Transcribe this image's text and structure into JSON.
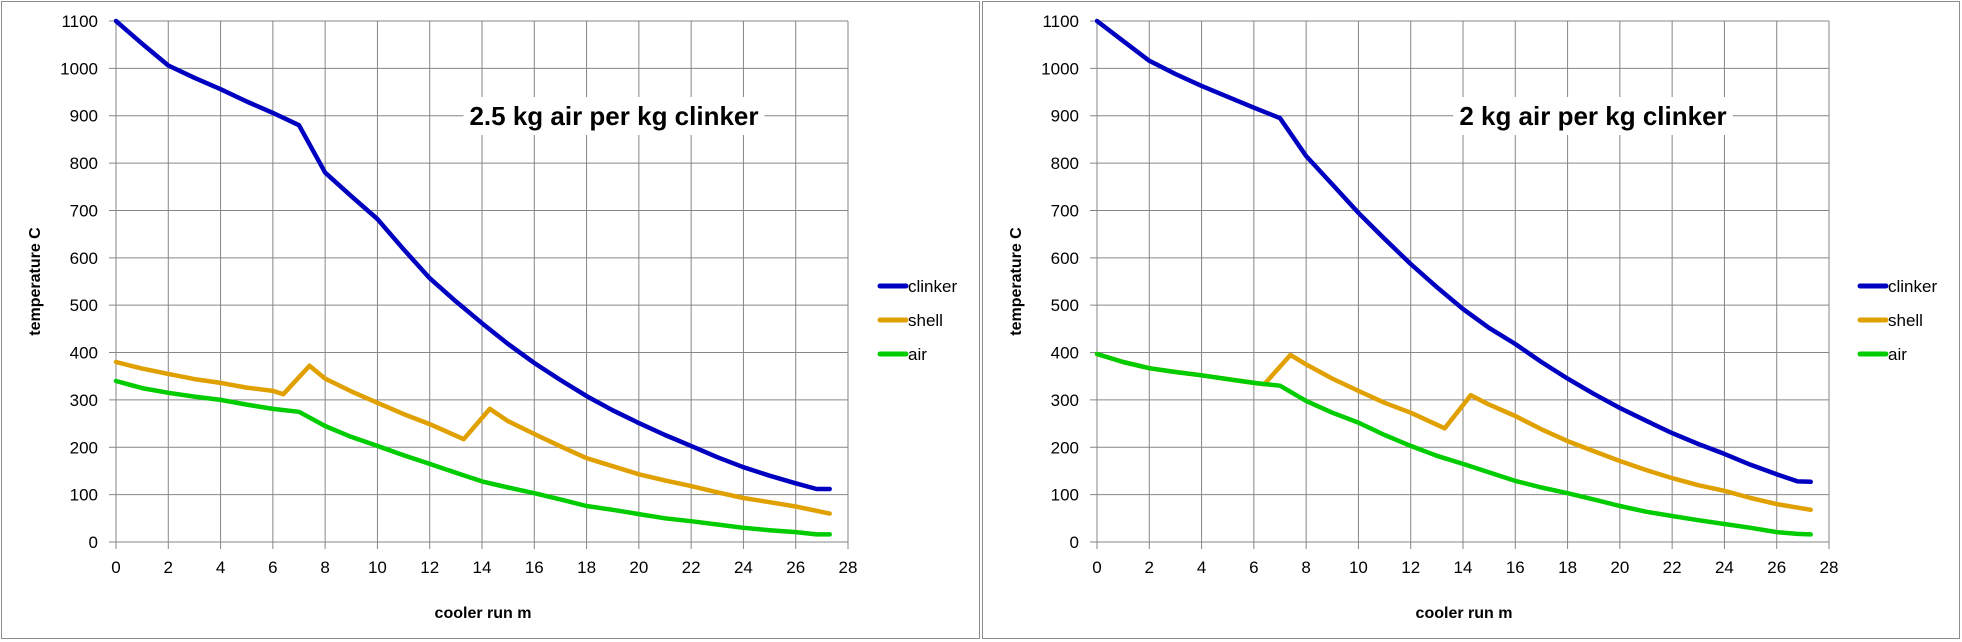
{
  "chart_data": [
    {
      "type": "line",
      "title": "2.5 kg air per kg clinker",
      "xlabel": "cooler run m",
      "ylabel": "temperature C",
      "xlim": [
        0,
        28
      ],
      "ylim": [
        0,
        1100
      ],
      "xticks": [
        0,
        2,
        4,
        6,
        8,
        10,
        12,
        14,
        16,
        18,
        20,
        22,
        24,
        26,
        28
      ],
      "yticks": [
        0,
        100,
        200,
        300,
        400,
        500,
        600,
        700,
        800,
        900,
        1000,
        1100
      ],
      "grid": true,
      "legend_position": "right",
      "series": [
        {
          "name": "clinker",
          "color": "#0000C0",
          "x": [
            0,
            1,
            2,
            3,
            4,
            5,
            6,
            7,
            8,
            9,
            10,
            11,
            12,
            13,
            14,
            15,
            16,
            17,
            18,
            19,
            20,
            21,
            22,
            23,
            24,
            25,
            26,
            26.8,
            27.3
          ],
          "y": [
            1100,
            1052,
            1006,
            980,
            956,
            930,
            906,
            880,
            780,
            730,
            682,
            618,
            557,
            508,
            462,
            418,
            378,
            342,
            308,
            278,
            251,
            226,
            203,
            179,
            158,
            140,
            124,
            112,
            112
          ]
        },
        {
          "name": "shell",
          "color": "#E0A000",
          "x": [
            0,
            1,
            2,
            3,
            4,
            5,
            6,
            6.4,
            7.4,
            8,
            9,
            10,
            11,
            12,
            13.3,
            14.3,
            15,
            16,
            17,
            18,
            19,
            20,
            21,
            22,
            23,
            24,
            25,
            26,
            27.3
          ],
          "y": [
            380,
            366,
            355,
            344,
            336,
            326,
            319,
            312,
            372,
            345,
            318,
            294,
            270,
            249,
            217,
            281,
            255,
            228,
            202,
            177,
            160,
            143,
            130,
            118,
            105,
            93,
            84,
            75,
            60
          ]
        },
        {
          "name": "air",
          "color": "#00CC00",
          "x": [
            0,
            1,
            2,
            3,
            4,
            5,
            6,
            7,
            8,
            9,
            10,
            11,
            12,
            13,
            14,
            15,
            16,
            17,
            18,
            19,
            20,
            21,
            22,
            23,
            24,
            25,
            26,
            26.8,
            27.3
          ],
          "y": [
            340,
            325,
            315,
            307,
            300,
            290,
            281,
            275,
            245,
            222,
            203,
            183,
            165,
            146,
            128,
            115,
            103,
            90,
            76,
            68,
            59,
            50,
            44,
            37,
            30,
            25,
            21,
            16,
            16
          ]
        }
      ]
    },
    {
      "type": "line",
      "title": "2 kg air per kg clinker",
      "xlabel": "cooler run m",
      "ylabel": "temperature C",
      "xlim": [
        0,
        28
      ],
      "ylim": [
        0,
        1100
      ],
      "xticks": [
        0,
        2,
        4,
        6,
        8,
        10,
        12,
        14,
        16,
        18,
        20,
        22,
        24,
        26,
        28
      ],
      "yticks": [
        0,
        100,
        200,
        300,
        400,
        500,
        600,
        700,
        800,
        900,
        1000,
        1100
      ],
      "grid": true,
      "legend_position": "right",
      "series": [
        {
          "name": "clinker",
          "color": "#0000C0",
          "x": [
            0,
            1,
            2,
            3,
            4,
            5,
            6,
            7,
            8,
            9,
            10,
            11,
            12,
            13,
            14,
            15,
            16,
            17,
            18,
            19,
            20,
            21,
            22,
            23,
            24,
            25,
            26,
            26.8,
            27.3
          ],
          "y": [
            1100,
            1058,
            1016,
            988,
            963,
            940,
            917,
            895,
            815,
            755,
            695,
            640,
            587,
            538,
            492,
            452,
            418,
            380,
            345,
            313,
            283,
            256,
            230,
            207,
            186,
            163,
            143,
            128,
            127
          ]
        },
        {
          "name": "shell",
          "color": "#E0A000",
          "x": [
            0,
            1,
            2,
            3,
            4,
            5,
            6,
            6.4,
            7.4,
            8,
            9,
            10,
            11,
            12,
            13.3,
            14.3,
            15,
            16,
            17,
            18,
            19,
            20,
            21,
            22,
            23,
            24,
            25,
            26,
            27.3
          ],
          "y": [
            397,
            380,
            367,
            359,
            352,
            344,
            336,
            333,
            395,
            375,
            345,
            319,
            294,
            273,
            240,
            310,
            290,
            266,
            238,
            213,
            192,
            171,
            152,
            135,
            120,
            108,
            93,
            80,
            68
          ]
        },
        {
          "name": "air",
          "color": "#00CC00",
          "x": [
            0,
            1,
            2,
            3,
            4,
            5,
            6,
            7,
            8,
            9,
            10,
            11,
            12,
            13,
            14,
            15,
            16,
            17,
            18,
            19,
            20,
            21,
            22,
            23,
            24,
            25,
            26,
            26.8,
            27.3
          ],
          "y": [
            397,
            380,
            367,
            359,
            352,
            344,
            336,
            330,
            298,
            273,
            252,
            226,
            203,
            182,
            165,
            147,
            129,
            115,
            103,
            90,
            76,
            64,
            55,
            46,
            38,
            30,
            21,
            17,
            16
          ]
        }
      ]
    }
  ]
}
